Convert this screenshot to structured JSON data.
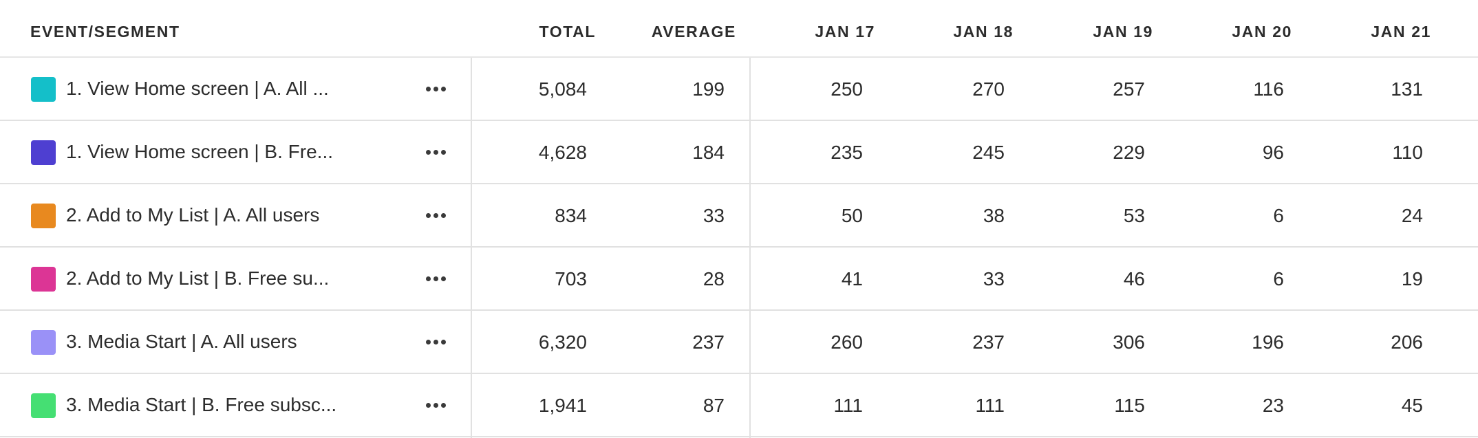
{
  "columns": {
    "event_segment": "EVENT/SEGMENT",
    "total": "TOTAL",
    "average": "AVERAGE",
    "dates": [
      "JAN 17",
      "JAN 18",
      "JAN 19",
      "JAN 20",
      "JAN 21"
    ]
  },
  "rows": [
    {
      "label": "1. View Home screen | A. All ...",
      "color": "#14BFC9",
      "total": "5,084",
      "average": "199",
      "values": [
        "250",
        "270",
        "257",
        "116",
        "131"
      ]
    },
    {
      "label": "1. View Home screen | B. Fre...",
      "color": "#4E3FD1",
      "total": "4,628",
      "average": "184",
      "values": [
        "235",
        "245",
        "229",
        "96",
        "110"
      ]
    },
    {
      "label": "2. Add to My List | A. All users",
      "color": "#E8891F",
      "total": "834",
      "average": "33",
      "values": [
        "50",
        "38",
        "53",
        "6",
        "24"
      ]
    },
    {
      "label": "2. Add to My List | B. Free su...",
      "color": "#DC3595",
      "total": "703",
      "average": "28",
      "values": [
        "41",
        "33",
        "46",
        "6",
        "19"
      ]
    },
    {
      "label": "3. Media Start | A. All users",
      "color": "#9A91F7",
      "total": "6,320",
      "average": "237",
      "values": [
        "260",
        "237",
        "306",
        "196",
        "206"
      ]
    },
    {
      "label": "3. Media Start | B. Free subsc...",
      "color": "#45DF73",
      "total": "1,941",
      "average": "87",
      "values": [
        "111",
        "111",
        "115",
        "23",
        "45"
      ]
    }
  ],
  "icons": {
    "more": "more-horizontal-icon"
  }
}
